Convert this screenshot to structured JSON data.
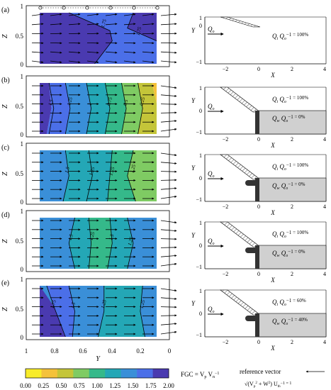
{
  "figure": {
    "panel_labels": [
      "(a)",
      "(b)",
      "(c)",
      "(d)",
      "(e)"
    ],
    "left_axis": {
      "ylabel": "Z",
      "y_ticks": [
        "0",
        "0.5",
        "1"
      ],
      "xlabel": "Y",
      "x_ticks": [
        "1",
        "0.8",
        "0.6",
        "0.4",
        "0.2",
        "0"
      ]
    },
    "schematic_axes": {
      "xlabel": "X",
      "ylabel": "Y",
      "x_ticks": [
        "−2",
        "0",
        "2",
        "4"
      ],
      "y_ticks": [
        "1",
        "0",
        "−1"
      ]
    },
    "inflow_label": "Q",
    "inflow_sub": "o",
    "contour_labels": [
      [
        "1.75",
        "1.75"
      ],
      [
        "1.5",
        "1.25",
        "1",
        "0.75",
        "0.5",
        "0.25"
      ],
      [
        "1.5",
        "1.25",
        "1.25",
        "1.25"
      ],
      [
        "1.5",
        "1.25",
        "1.5",
        "1.25"
      ],
      [
        "1.75",
        "1.5",
        "1.25",
        "1.25"
      ]
    ],
    "schematic_texts": [
      {
        "top_q": "Q",
        "top_sub": "i",
        "top_rest": " Q",
        "top_sub2": "o",
        "top_val": "−1 = 100%"
      },
      {
        "top_q": "Q",
        "top_sub": "i",
        "top_rest": " Q",
        "top_sub2": "o",
        "top_val": "−1 = 100%",
        "bot_q": "Q",
        "bot_sub": "w",
        "bot_rest": " Q",
        "bot_sub2": "o",
        "bot_val": "−1 = 0%"
      },
      {
        "top_q": "Q",
        "top_sub": "i",
        "top_rest": " Q",
        "top_sub2": "o",
        "top_val": "−1 = 100%",
        "bot_q": "Q",
        "bot_sub": "w",
        "bot_rest": " Q",
        "bot_sub2": "o",
        "bot_val": "−1 = 0%"
      },
      {
        "top_q": "Q",
        "top_sub": "i",
        "top_rest": " Q",
        "top_sub2": "o",
        "top_val": "−1 = 100%",
        "bot_q": "Q",
        "bot_sub": "w",
        "bot_rest": " Q",
        "bot_sub2": "o",
        "bot_val": "−1 = 0%"
      },
      {
        "top_q": "Q",
        "top_sub": "i",
        "top_rest": " Q",
        "top_sub2": "o",
        "top_val": "−1 = 60%",
        "bot_q": "Q",
        "bot_sub": "w",
        "bot_rest": " Q",
        "bot_sub2": "o",
        "bot_val": "−1 = 40%"
      }
    ],
    "colorbar": {
      "ticks": [
        "0.00",
        "0.25",
        "0.50",
        "0.75",
        "1.00",
        "1.25",
        "1.50",
        "1.75",
        "2.00"
      ],
      "colors": [
        "#f8ec2a",
        "#f4c23b",
        "#c4c539",
        "#7fcb63",
        "#35b98a",
        "#24a7b6",
        "#3a8fd8",
        "#4b6fe8",
        "#4a3ab0"
      ],
      "label_main": "FGC = V",
      "label_sub1": "p",
      "label_mid": " V",
      "label_sub2": "n",
      "label_end": "−1"
    },
    "reference": {
      "label": "reference vector",
      "formula_lhs": "√(V",
      "formula_p": "p",
      "formula_sq": "2",
      "formula_plus": " + W",
      "formula_sq2": "2",
      "formula_rp": ")",
      "formula_u": " U",
      "formula_th": "th",
      "formula_end": "−1 = 1"
    }
  }
}
